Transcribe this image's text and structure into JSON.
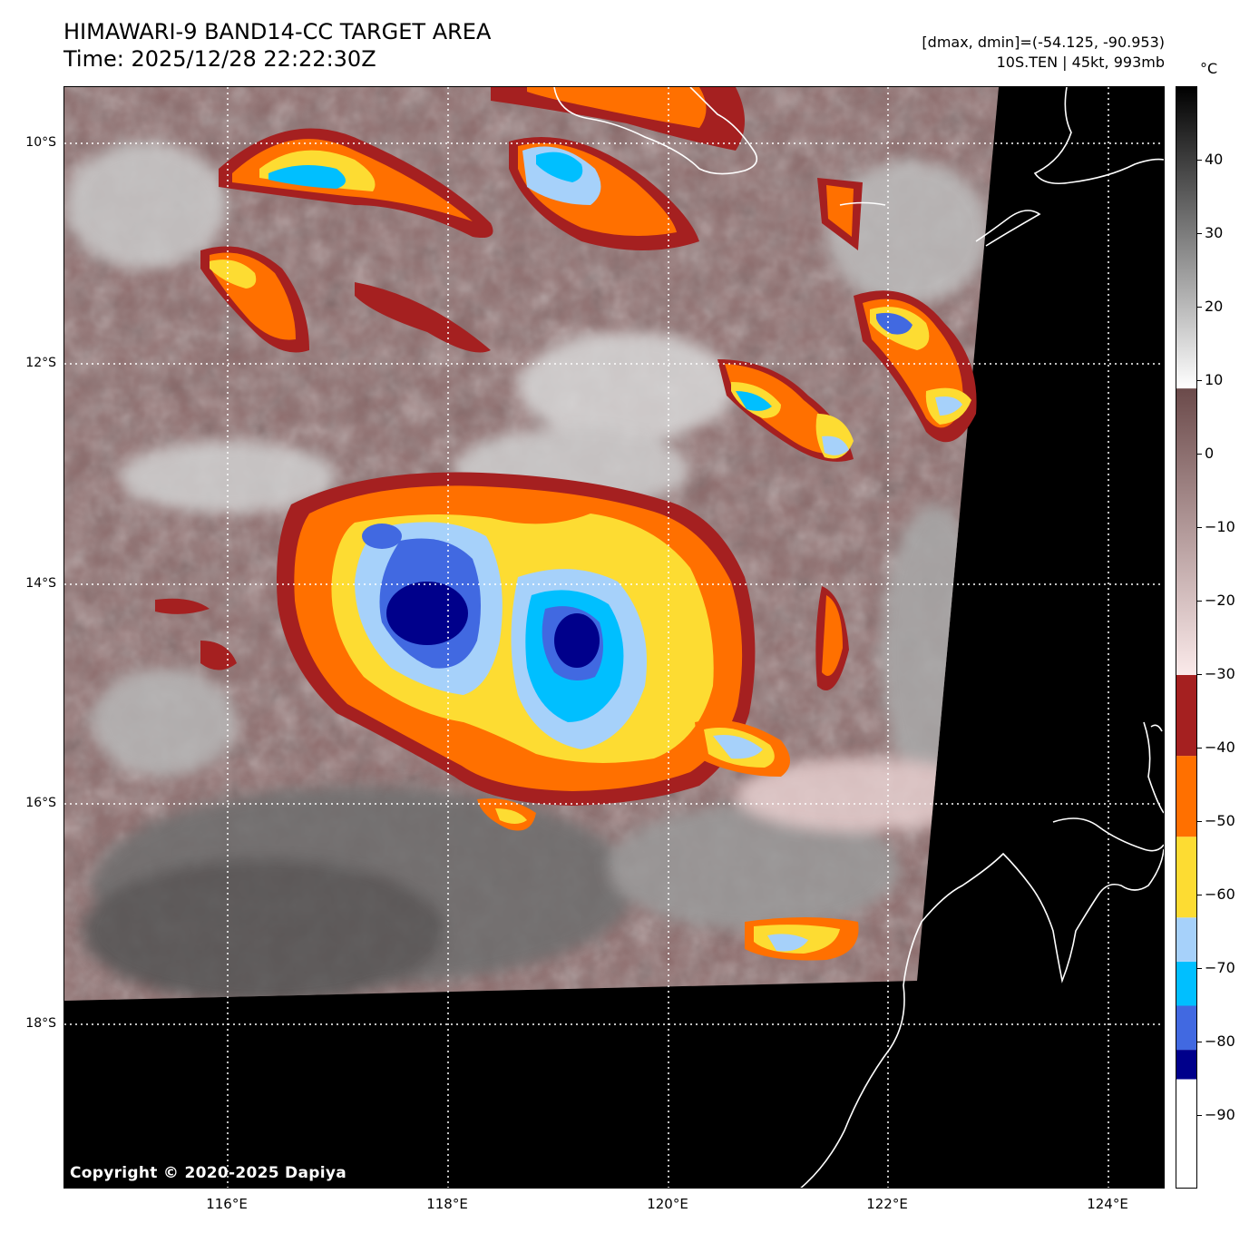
{
  "header": {
    "title": "HIMAWARI-9 BAND14-CC TARGET AREA",
    "time": "Time: 2025/12/28 22:22:30Z",
    "dminmax": "[dmax, dmin]=(-54.125, -90.953)",
    "storm": "10S.TEN | 45kt, 993mb"
  },
  "map": {
    "copyright": "Copyright © 2020-2025 Dapiya",
    "lat_labels": [
      "10°S",
      "12°S",
      "14°S",
      "16°S",
      "18°S"
    ],
    "lon_labels": [
      "116°E",
      "118°E",
      "120°E",
      "122°E",
      "124°E"
    ],
    "background_color": "#000000",
    "coastline_color": "#ffffff",
    "grid_style": "dotted white"
  },
  "colorbar": {
    "unit": "°C",
    "ticks": [
      "40",
      "30",
      "20",
      "10",
      "0",
      "−10",
      "−20",
      "−30",
      "−40",
      "−50",
      "−60",
      "−70",
      "−80",
      "−90"
    ],
    "stops": [
      {
        "from": -100,
        "to": -85,
        "color": "#ffffff"
      },
      {
        "from": -85,
        "to": -81,
        "color": "#00008b"
      },
      {
        "from": -81,
        "to": -75,
        "color": "#4169e1"
      },
      {
        "from": -75,
        "to": -69,
        "color": "#00bfff"
      },
      {
        "from": -69,
        "to": -63,
        "color": "#a6d1fa"
      },
      {
        "from": -63,
        "to": -52,
        "color": "#fddc32"
      },
      {
        "from": -52,
        "to": -41,
        "color": "#ff7000"
      },
      {
        "from": -41,
        "to": -30,
        "color": "#a52020"
      }
    ],
    "gradients": [
      {
        "from": -30,
        "to": 9,
        "color_start": "#fbeaea",
        "color_end": "#6b4a4a"
      },
      {
        "from": 9,
        "to": 50,
        "color_start": "#ffffff",
        "color_end": "#000000"
      }
    ]
  }
}
